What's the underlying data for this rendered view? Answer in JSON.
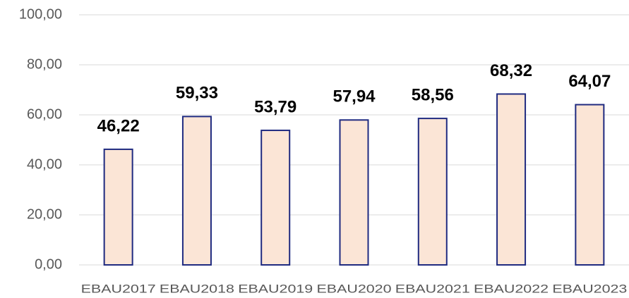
{
  "chart_data": {
    "type": "bar",
    "categories": [
      "EBAU2017",
      "EBAU2018",
      "EBAU2019",
      "EBAU2020",
      "EBAU2021",
      "EBAU2022",
      "EBAU2023"
    ],
    "values": [
      46.22,
      59.33,
      53.79,
      57.94,
      58.56,
      68.32,
      64.07
    ],
    "value_labels": [
      "46,22",
      "59,33",
      "53,79",
      "57,94",
      "58,56",
      "68,32",
      "64,07"
    ],
    "color": "#fbe5d6",
    "edge_color": "#1f2a80",
    "ylim": [
      0,
      100
    ],
    "yticks": [
      {
        "value": 0,
        "label": "0,00"
      },
      {
        "value": 20,
        "label": "20,00"
      },
      {
        "value": 40,
        "label": "40,00"
      },
      {
        "value": 60,
        "label": "60,00"
      },
      {
        "value": 80,
        "label": "80,00"
      },
      {
        "value": 100,
        "label": "100,00"
      }
    ],
    "grid": true
  }
}
